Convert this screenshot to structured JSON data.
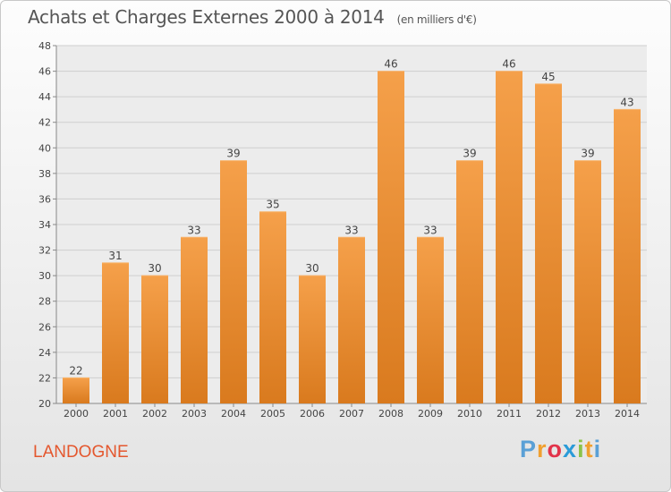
{
  "chart_data": {
    "type": "bar",
    "title": "Achats et Charges Externes 2000 à 2014",
    "subtitle": "(en milliers d'€)",
    "categories": [
      "2000",
      "2001",
      "2002",
      "2003",
      "2004",
      "2005",
      "2006",
      "2007",
      "2008",
      "2009",
      "2010",
      "2011",
      "2012",
      "2013",
      "2014"
    ],
    "values": [
      22,
      31,
      30,
      33,
      39,
      35,
      30,
      33,
      46,
      33,
      39,
      46,
      45,
      39,
      43
    ],
    "xlabel": "",
    "ylabel": "",
    "ylim": [
      20,
      48
    ],
    "yticks": [
      20,
      22,
      24,
      26,
      28,
      30,
      32,
      34,
      36,
      38,
      40,
      42,
      44,
      46,
      48
    ],
    "grid": true,
    "bar_color": "#f5a04a",
    "bar_color_dark": "#d97a1e"
  },
  "commune": "LANDOGNE",
  "logo": {
    "letters": [
      "P",
      "r",
      "o",
      "x",
      "i",
      "t",
      "i"
    ],
    "colors": [
      "#5aa0d6",
      "#f0a030",
      "#e2334a",
      "#2a9bd8",
      "#8bc34a",
      "#f0a030",
      "#5aa0d6"
    ]
  }
}
